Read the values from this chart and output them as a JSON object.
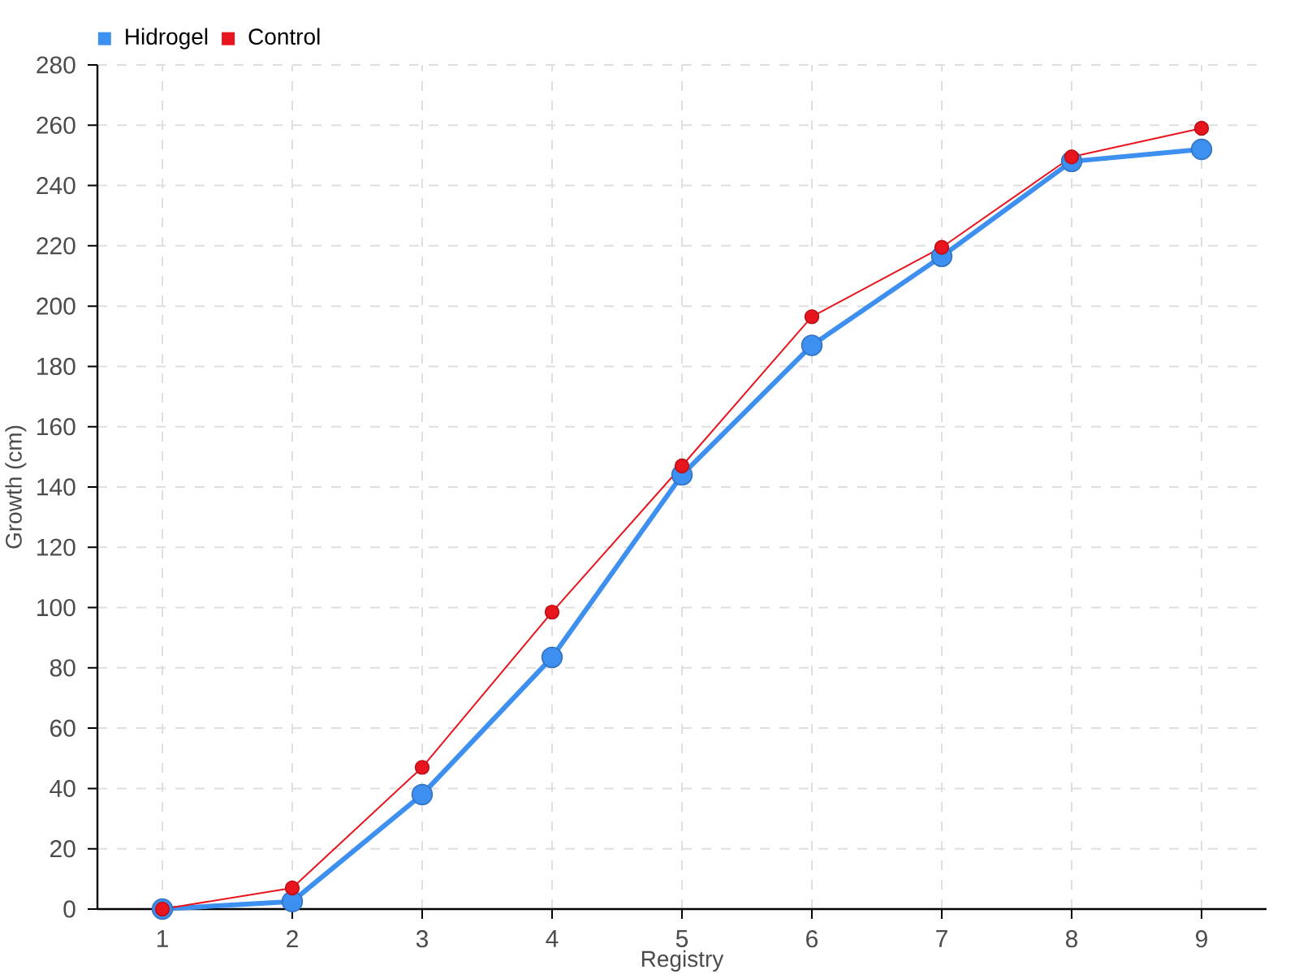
{
  "chart_data": {
    "type": "line",
    "xlabel": "Registry",
    "ylabel": "Growth (cm)",
    "x": [
      1,
      2,
      3,
      4,
      5,
      6,
      7,
      8,
      9
    ],
    "series": [
      {
        "name": "Hidrogel",
        "color": "#3d8ff0",
        "values": [
          0,
          2.5,
          38,
          83.5,
          144,
          187,
          216.5,
          248,
          252
        ]
      },
      {
        "name": "Control",
        "color": "#e8141e",
        "values": [
          0,
          7,
          47,
          98.5,
          147,
          196.5,
          219.5,
          249.5,
          259
        ]
      }
    ],
    "xlim": [
      0.5,
      9.5
    ],
    "xticks": [
      1,
      2,
      3,
      4,
      5,
      6,
      7,
      8,
      9
    ],
    "ylim": [
      0,
      280
    ],
    "yticks": [
      0,
      20,
      40,
      60,
      80,
      100,
      120,
      140,
      160,
      180,
      200,
      220,
      240,
      260,
      280
    ],
    "grid": true,
    "legend": "top left",
    "marker": "circle",
    "line_style": "solid"
  }
}
